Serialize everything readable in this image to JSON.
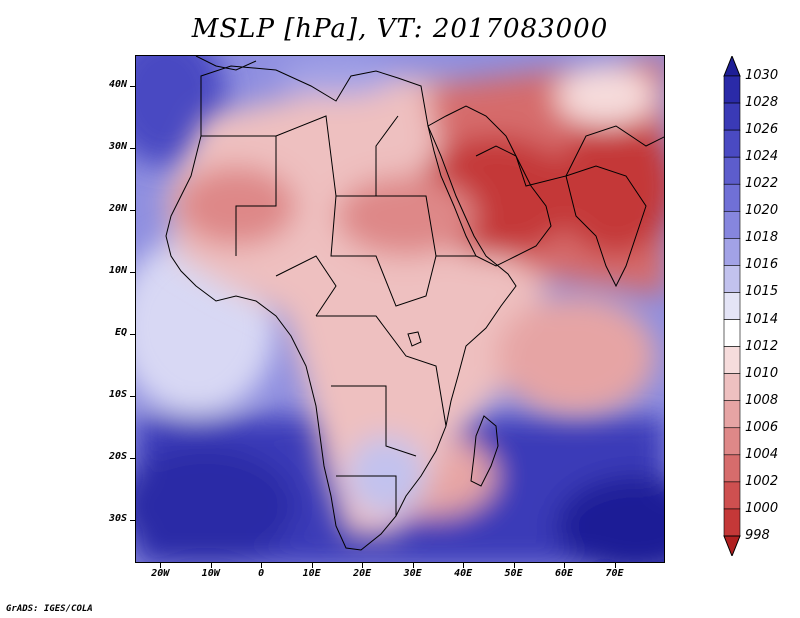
{
  "title": "MSLP [hPa], VT: 2017083000",
  "footer": "GrADS: IGES/COLA",
  "map": {
    "field": "MSLP",
    "units": "hPa",
    "valid_time": "2017083000",
    "lon_range": [
      -25,
      80
    ],
    "lat_range": [
      -37,
      45
    ],
    "y_ticks": [
      {
        "lat": 40,
        "label": "40N"
      },
      {
        "lat": 30,
        "label": "30N"
      },
      {
        "lat": 20,
        "label": "20N"
      },
      {
        "lat": 10,
        "label": "10N"
      },
      {
        "lat": 0,
        "label": "EQ"
      },
      {
        "lat": -10,
        "label": "10S"
      },
      {
        "lat": -20,
        "label": "20S"
      },
      {
        "lat": -30,
        "label": "30S"
      }
    ],
    "x_ticks": [
      {
        "lon": -20,
        "label": "20W"
      },
      {
        "lon": -10,
        "label": "10W"
      },
      {
        "lon": 0,
        "label": "0"
      },
      {
        "lon": 10,
        "label": "10E"
      },
      {
        "lon": 20,
        "label": "20E"
      },
      {
        "lon": 30,
        "label": "30E"
      },
      {
        "lon": 40,
        "label": "40E"
      },
      {
        "lon": 50,
        "label": "50E"
      },
      {
        "lon": 60,
        "label": "60E"
      },
      {
        "lon": 70,
        "label": "70E"
      }
    ]
  },
  "colorbar": {
    "labels": [
      "1030",
      "1028",
      "1026",
      "1024",
      "1022",
      "1020",
      "1018",
      "1016",
      "1015",
      "1014",
      "1012",
      "1010",
      "1008",
      "1006",
      "1004",
      "1002",
      "1000",
      "998"
    ],
    "colors": [
      "#1e1e96",
      "#2a2aa8",
      "#3a3ab6",
      "#4a4ac2",
      "#5d5dcc",
      "#7070d6",
      "#8686de",
      "#a2a2e6",
      "#c2c2ee",
      "#e4e4f6",
      "#ffffff",
      "#f6dcdc",
      "#eec0c0",
      "#e6a4a4",
      "#de8888",
      "#d66c6c",
      "#ce5050",
      "#c43838",
      "#b02020"
    ]
  }
}
